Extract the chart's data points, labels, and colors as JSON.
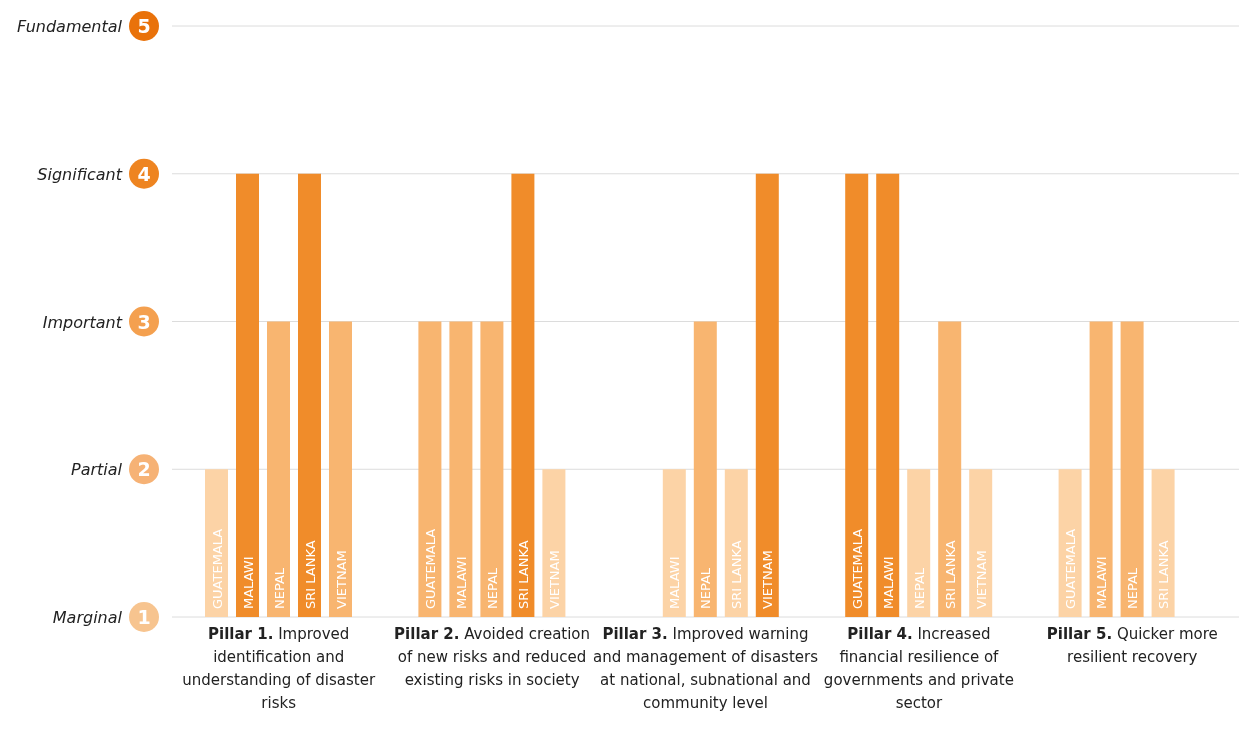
{
  "chart_data": {
    "type": "bar",
    "categories": [
      "Pillar 1. Improved identification and understanding of disaster risks",
      "Pillar 2. Avoided creation of new risks and reduced existing risks in society",
      "Pillar 3. Improved warning and management of disasters at national, subnational and community level",
      "Pillar 4. Increased financial resilience of governments and private sector",
      "Pillar 5. Quicker more resilient recovery"
    ],
    "series": [
      {
        "name": "GUATEMALA",
        "colors": [
          "#fcd3a6",
          "#f8b570",
          null,
          "#f08c2a",
          "#fcd3a6"
        ],
        "values": [
          2,
          3,
          null,
          4,
          2
        ]
      },
      {
        "name": "MALAWI",
        "colors": [
          "#f08c2a",
          "#f8b570",
          "#fcd3a6",
          "#f08c2a",
          "#f8b570"
        ],
        "values": [
          4,
          3,
          2,
          4,
          3
        ]
      },
      {
        "name": "NEPAL",
        "colors": [
          "#f8b570",
          "#f8b570",
          "#f8b570",
          "#fcd3a6",
          "#f8b570"
        ],
        "values": [
          3,
          3,
          3,
          2,
          3
        ]
      },
      {
        "name": "SRI LANKA",
        "colors": [
          "#f08c2a",
          "#f08c2a",
          "#fcd3a6",
          "#f8b570",
          "#fcd3a6"
        ],
        "values": [
          4,
          4,
          2,
          3,
          2
        ]
      },
      {
        "name": "VIETNAM",
        "colors": [
          "#f8b570",
          "#fcd3a6",
          "#f08c2a",
          "#fcd3a6",
          null
        ],
        "values": [
          3,
          2,
          4,
          2,
          null
        ]
      }
    ],
    "ylim": [
      1,
      5
    ],
    "yticks": [
      1,
      2,
      3,
      4,
      5
    ],
    "annotations": [
      "Marginal",
      "Partial",
      "Important",
      "Significant",
      "Fundamental"
    ],
    "grid": "y",
    "legend": false
  }
}
